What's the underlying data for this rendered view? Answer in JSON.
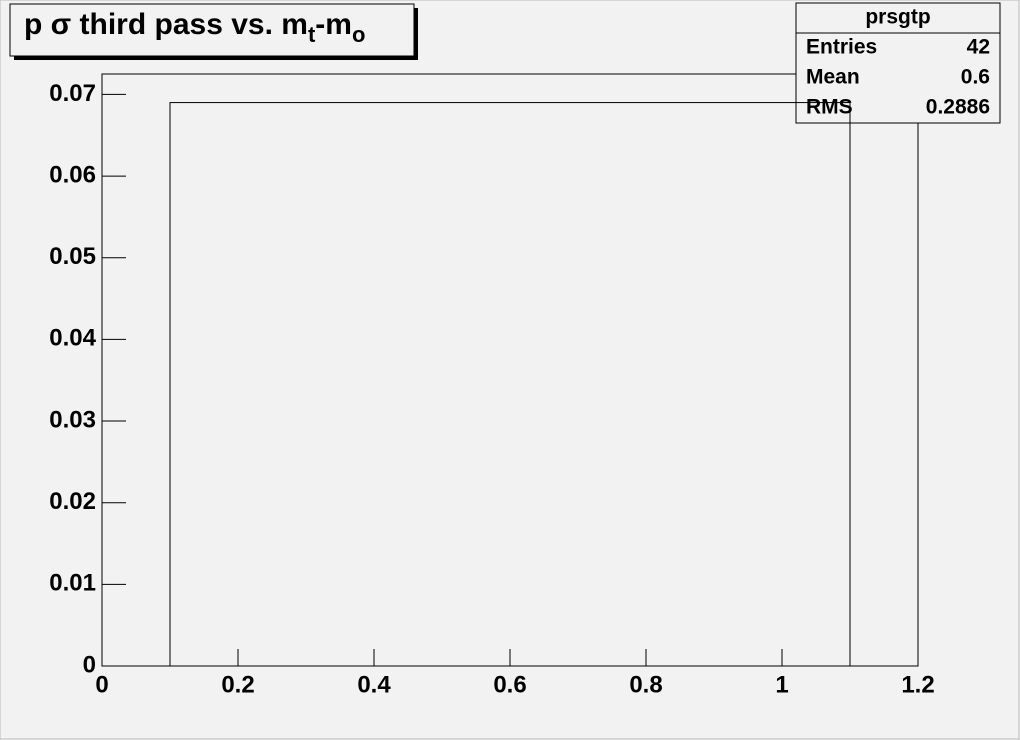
{
  "chart_data": {
    "type": "histogram",
    "title": [
      "p σ third pass vs. m",
      "t",
      "-m",
      "o"
    ],
    "bins": [
      0,
      0.1,
      1.1,
      1.2
    ],
    "values": [
      0,
      0.069,
      0
    ],
    "color": "#000000",
    "xlim": [
      0,
      1.2
    ],
    "xticks": [
      0,
      0.2,
      0.4,
      0.6,
      0.8,
      1,
      1.2
    ],
    "ylim": [
      0,
      0.0725
    ],
    "yticks": [
      0,
      0.01,
      0.02,
      0.03,
      0.04,
      0.05,
      0.06,
      0.07
    ],
    "stats": {
      "name": "prsgtp",
      "rows": [
        [
          "Entries",
          42
        ],
        [
          "Mean",
          0.6
        ],
        [
          "RMS",
          0.2886
        ]
      ]
    }
  }
}
